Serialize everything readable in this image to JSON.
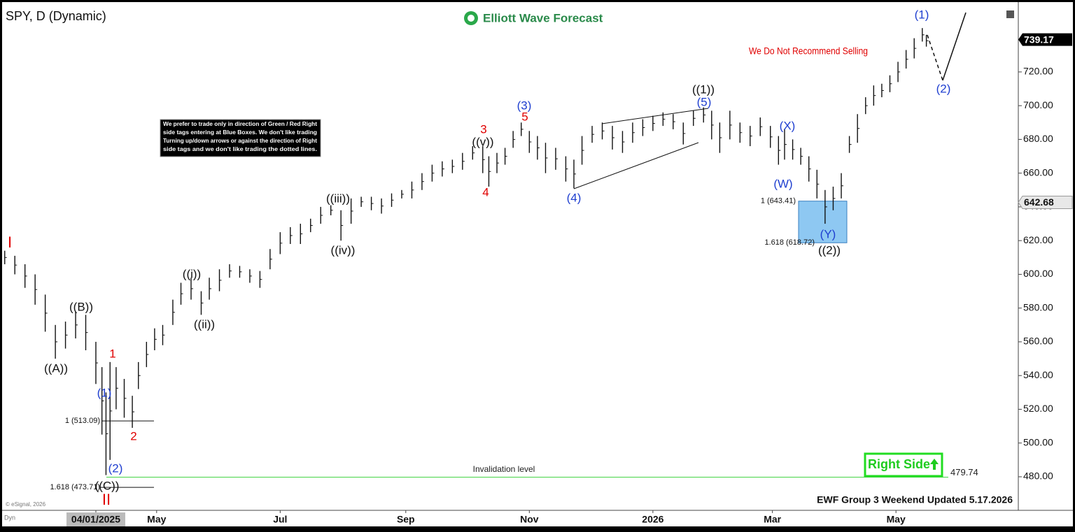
{
  "chart_data": {
    "type": "ohlc",
    "title": "SPY, D (Dynamic)",
    "logo": "Elliott Wave Forecast",
    "warning": "We Do Not Recommend Selling",
    "note": [
      "We prefer to trade only in direction of Green / Red Right",
      "side tags entering at Blue Boxes. We don't like trading",
      "Turning up/down arrows or against the direction of Right",
      "side tags and we don't like trading the dotted lines."
    ],
    "right_side": "Right Side",
    "footer": "EWF Group 3 Weekend Updated 5.17.2026",
    "copyright": "© eSignal, 2026",
    "corner": "Dyn",
    "invalidation_text": "Invalidation level",
    "invalidation": {
      "value": 479.74,
      "label": "479.74"
    },
    "last_price": 739.17,
    "marker_price": 642.68,
    "fib_levels": [
      {
        "value": 513.09,
        "label": "1 (513.09)"
      },
      {
        "value": 473.71,
        "label": "1.618 (473.71)"
      },
      {
        "value": 643.41,
        "label": "1 (643.41)"
      },
      {
        "value": 618.72,
        "label": "1.618 (618.72)"
      }
    ],
    "annotations": [
      {
        "text": "I",
        "color": "#e00000"
      },
      {
        "text": "((A))",
        "color": "#111"
      },
      {
        "text": "((B))",
        "color": "#111"
      },
      {
        "text": "1",
        "color": "#e00000"
      },
      {
        "text": "(1)",
        "color": "#1f3fd0"
      },
      {
        "text": "2",
        "color": "#e00000"
      },
      {
        "text": "(2)",
        "color": "#1f3fd0"
      },
      {
        "text": "((C))",
        "color": "#111"
      },
      {
        "text": "II",
        "color": "#e00000"
      },
      {
        "text": "((i))",
        "color": "#111"
      },
      {
        "text": "((ii))",
        "color": "#111"
      },
      {
        "text": "((iii))",
        "color": "#111"
      },
      {
        "text": "((iv))",
        "color": "#111"
      },
      {
        "text": "3",
        "color": "#e00000"
      },
      {
        "text": "((v))",
        "color": "#111"
      },
      {
        "text": "4",
        "color": "#e00000"
      },
      {
        "text": "5",
        "color": "#e00000"
      },
      {
        "text": "(3)",
        "color": "#1f3fd0"
      },
      {
        "text": "(4)",
        "color": "#1f3fd0"
      },
      {
        "text": "((1))",
        "color": "#111"
      },
      {
        "text": "(5)",
        "color": "#1f3fd0"
      },
      {
        "text": "(X)",
        "color": "#1f3fd0"
      },
      {
        "text": "(W)",
        "color": "#1f3fd0"
      },
      {
        "text": "(Y)",
        "color": "#1f3fd0"
      },
      {
        "text": "((2))",
        "color": "#111"
      },
      {
        "text": "(1)",
        "color": "#1f3fd0"
      },
      {
        "text": "(2)",
        "color": "#1f3fd0"
      }
    ],
    "xlim": [
      -45.6,
      455.4
    ],
    "xticks": [
      {
        "value": 0,
        "label": "04/01/2025"
      },
      {
        "value": 30,
        "label": "May"
      },
      {
        "value": 91,
        "label": "Jul"
      },
      {
        "value": 153,
        "label": "Sep"
      },
      {
        "value": 214,
        "label": "Nov"
      },
      {
        "value": 275,
        "label": "2026"
      },
      {
        "value": 334,
        "label": "Mar"
      },
      {
        "value": 395,
        "label": "May"
      }
    ],
    "ylim": [
      460.1,
      758.5
    ],
    "yticks": [
      {
        "value": 480,
        "label": "480.00"
      },
      {
        "value": 500,
        "label": "500.00"
      },
      {
        "value": 520,
        "label": "520.00"
      },
      {
        "value": 540,
        "label": "540.00"
      },
      {
        "value": 560,
        "label": "560.00"
      },
      {
        "value": 580,
        "label": "580.00"
      },
      {
        "value": 600,
        "label": "600.00"
      },
      {
        "value": 620,
        "label": "620.00"
      },
      {
        "value": 640,
        "label": "640.00"
      },
      {
        "value": 660,
        "label": "660.00"
      },
      {
        "value": 680,
        "label": "680.00"
      },
      {
        "value": 700,
        "label": "700.00"
      },
      {
        "value": 720,
        "label": "720.00"
      }
    ],
    "color": "#111111",
    "x": [
      -45,
      -40,
      -35,
      -30,
      -25,
      -20,
      -15,
      -10,
      -5,
      0,
      3,
      5,
      7,
      10,
      14,
      18,
      21,
      25,
      29,
      33,
      38,
      42,
      47,
      52,
      56,
      61,
      66,
      71,
      76,
      81,
      86,
      91,
      96,
      101,
      106,
      111,
      116,
      121,
      126,
      131,
      136,
      141,
      146,
      151,
      156,
      161,
      166,
      171,
      176,
      181,
      186,
      191,
      194,
      198,
      202,
      206,
      210,
      214,
      218,
      222,
      227,
      232,
      236,
      240,
      245,
      250,
      255,
      260,
      265,
      270,
      275,
      280,
      285,
      290,
      295,
      300,
      304,
      308,
      313,
      318,
      323,
      328,
      333,
      337,
      340,
      344,
      348,
      352,
      356,
      360,
      364,
      368,
      372,
      376,
      380,
      384,
      388,
      392,
      396,
      400,
      404,
      408,
      410
    ],
    "low": [
      606,
      600,
      592,
      582,
      566,
      550,
      556,
      562,
      555,
      535,
      505,
      481,
      490,
      520,
      515,
      509,
      532,
      545,
      555,
      558,
      570,
      582,
      585,
      576,
      585,
      590,
      598,
      598,
      595,
      592,
      603,
      612,
      618,
      618,
      625,
      630,
      635,
      620,
      630,
      640,
      638,
      636,
      640,
      645,
      645,
      650,
      655,
      658,
      660,
      662,
      668,
      660,
      652,
      660,
      665,
      675,
      682,
      672,
      668,
      660,
      662,
      655,
      651,
      665,
      678,
      680,
      674,
      672,
      678,
      682,
      685,
      688,
      686,
      677,
      688,
      690,
      680,
      672,
      680,
      678,
      676,
      682,
      675,
      665,
      668,
      668,
      665,
      655,
      645,
      630,
      638,
      645,
      672,
      678,
      695,
      700,
      705,
      708,
      714,
      722,
      728,
      738,
      735
    ],
    "high": [
      614,
      611,
      606,
      600,
      588,
      570,
      572,
      578,
      576,
      560,
      545,
      530,
      548,
      545,
      538,
      528,
      548,
      560,
      568,
      570,
      585,
      595,
      598,
      590,
      598,
      603,
      606,
      605,
      603,
      602,
      615,
      625,
      628,
      630,
      633,
      640,
      641,
      638,
      645,
      646,
      646,
      645,
      648,
      650,
      655,
      660,
      665,
      667,
      668,
      672,
      676,
      676,
      670,
      672,
      675,
      685,
      690,
      685,
      682,
      678,
      675,
      670,
      668,
      682,
      688,
      690,
      688,
      685,
      690,
      692,
      694,
      696,
      695,
      690,
      697,
      699,
      697,
      690,
      697,
      690,
      688,
      693,
      688,
      682,
      686,
      680,
      675,
      670,
      662,
      650,
      652,
      660,
      682,
      695,
      705,
      712,
      713,
      718,
      726,
      733,
      740,
      746,
      742
    ]
  }
}
